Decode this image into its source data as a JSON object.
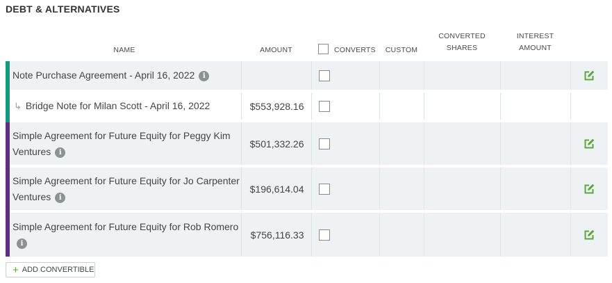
{
  "section": {
    "title": "DEBT & ALTERNATIVES"
  },
  "columns": {
    "name": "NAME",
    "amount": "AMOUNT",
    "converts": "CONVERTS",
    "custom": "CUSTOM",
    "converted_shares_l1": "CONVERTED",
    "converted_shares_l2": "SHARES",
    "interest_amount_l1": "INTEREST",
    "interest_amount_l2": "AMOUNT"
  },
  "rows": [
    {
      "name": "Note Purchase Agreement - April 16, 2022",
      "amount": "",
      "info_icon": "info-icon",
      "editable": true,
      "group_color": "#13997e"
    },
    {
      "name": "Bridge Note for Milan Scott - April 16, 2022",
      "amount": "$553,928.16",
      "sub_item": true,
      "editable": false,
      "group_color": "#13997e"
    },
    {
      "name": "Simple Agreement for Future Equity for Peggy Kim Ventures",
      "amount": "$501,332.26",
      "info_icon": "info-icon",
      "editable": true,
      "group_color": "#5c2e84"
    },
    {
      "name": "Simple Agreement for Future Equity for Jo Carpenter Ventures",
      "amount": "$196,614.04",
      "info_icon": "info-icon",
      "editable": true,
      "group_color": "#5c2e84"
    },
    {
      "name": "Simple Agreement for Future Equity for Rob Romero",
      "amount": "$756,116.33",
      "info_icon": "info-icon",
      "editable": true,
      "group_color": "#5c2e84"
    }
  ],
  "info_glyph": "i",
  "sub_arrow_glyph": "↳",
  "add_button": {
    "plus_glyph": "+",
    "label": "ADD CONVERTIBLE"
  },
  "colors": {
    "edit_green": "#5aa637",
    "teal": "#13997e",
    "purple": "#5c2e84"
  }
}
